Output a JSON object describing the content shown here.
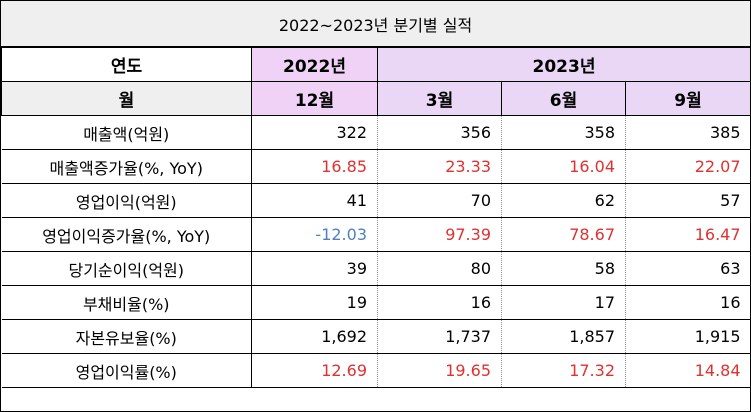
{
  "title": "2022~2023년 분기별 실적",
  "header": {
    "year_label": "연도",
    "year_2022": "2022년",
    "year_2023": "2023년",
    "month_label": "월",
    "months": [
      "12월",
      "3월",
      "6월",
      "9월"
    ]
  },
  "rows": [
    {
      "label": "매출액(억원)",
      "values": [
        "322",
        "356",
        "358",
        "385"
      ],
      "colors": [
        "",
        "",
        "",
        ""
      ]
    },
    {
      "label": "매출액증가율(%, YoY)",
      "values": [
        "16.85",
        "23.33",
        "16.04",
        "22.07"
      ],
      "colors": [
        "red",
        "red",
        "red",
        "red"
      ]
    },
    {
      "label": "영업이익(억원)",
      "values": [
        "41",
        "70",
        "62",
        "57"
      ],
      "colors": [
        "",
        "",
        "",
        ""
      ]
    },
    {
      "label": "영업이익증가율(%, YoY)",
      "values": [
        "-12.03",
        "97.39",
        "78.67",
        "16.47"
      ],
      "colors": [
        "blue",
        "red",
        "red",
        "red"
      ]
    },
    {
      "label": "당기순이익(억원)",
      "values": [
        "39",
        "80",
        "58",
        "63"
      ],
      "colors": [
        "",
        "",
        "",
        ""
      ]
    },
    {
      "label": "부채비율(%)",
      "values": [
        "19",
        "16",
        "17",
        "16"
      ],
      "colors": [
        "",
        "",
        "",
        ""
      ]
    },
    {
      "label": "자본유보율(%)",
      "values": [
        "1,692",
        "1,737",
        "1,857",
        "1,915"
      ],
      "colors": [
        "",
        "",
        "",
        ""
      ]
    },
    {
      "label": "영업이익률(%)",
      "values": [
        "12.69",
        "19.65",
        "17.32",
        "14.84"
      ],
      "colors": [
        "red",
        "red",
        "red",
        "red"
      ]
    }
  ],
  "colors": {
    "header_gray": "#efefef",
    "header_purple_2022": "#f0d2f6",
    "header_purple_2023": "#ead7f5",
    "positive_red": "#e0312f",
    "negative_blue": "#4e7fbf"
  }
}
